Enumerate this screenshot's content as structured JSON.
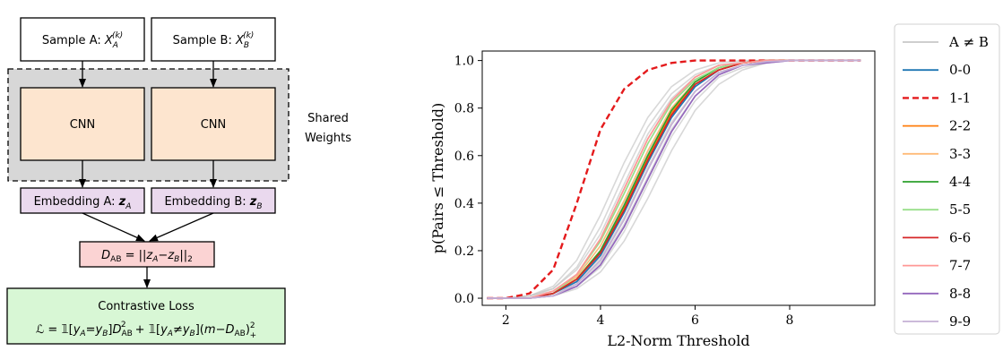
{
  "diagram": {
    "sample_a": {
      "prefix": "Sample A: ",
      "var": "X",
      "sub": "A",
      "sup": "(k)"
    },
    "sample_b": {
      "prefix": "Sample B: ",
      "var": "X",
      "sub": "B",
      "sup": "(k)"
    },
    "cnn_a": "CNN",
    "cnn_b": "CNN",
    "shared_line1": "Shared",
    "shared_line2": "Weights",
    "embedding_a": {
      "prefix": "Embedding A: ",
      "var": "z",
      "sub": "A"
    },
    "embedding_b": {
      "prefix": "Embedding B: ",
      "var": "z",
      "sub": "B"
    },
    "distance": {
      "lhs": "D",
      "lhs_sub": "AB",
      "eq": " = ||",
      "z1": "z",
      "s1": "A",
      "minus": "−",
      "z2": "z",
      "s2": "B",
      "tail": "||",
      "tail_sub": "2"
    },
    "loss_title": "Contrastive Loss",
    "loss_formula": {
      "L": "ℒ",
      "eq": " = ",
      "ind1": "𝟙[",
      "ya": "y",
      "ya_sub": "A",
      "eqsign": "=",
      "yb": "y",
      "yb_sub": "B",
      "close1": "]",
      "d": "D",
      "d_sub": "AB",
      "d_sup": "2",
      "plus": " + ",
      "ind2": "𝟙[",
      "neq": "≠",
      "close2": "](",
      "m": "m",
      "minus": "−",
      "d2": "D",
      "d2_sub": "AB",
      "close3": ")",
      "sq_sup": "2",
      "sq_sub": "+"
    },
    "colors": {
      "cnn_fill": "#fde5cf",
      "embedding_fill": "#ead9ee",
      "distance_fill": "#fbd3d3",
      "loss_fill": "#d8f7d5",
      "shared_fill": "#d7d7d7"
    }
  },
  "chart_data": {
    "type": "line",
    "xlabel": "L2-Norm Threshold",
    "ylabel": "p(Pairs ≤ Threshold)",
    "xlim": [
      1.5,
      9.8
    ],
    "ylim": [
      -0.03,
      1.04
    ],
    "xticks": [
      "2",
      "4",
      "6",
      "8"
    ],
    "xtick_values": [
      2,
      4,
      6,
      8
    ],
    "yticks": [
      "0.0",
      "0.2",
      "0.4",
      "0.6",
      "0.8",
      "1.0"
    ],
    "ytick_values": [
      0.0,
      0.2,
      0.4,
      0.6,
      0.8,
      1.0
    ],
    "grid": false,
    "legend_position": "outside-right",
    "x": [
      1.6,
      2.0,
      2.5,
      3.0,
      3.5,
      4.0,
      4.5,
      5.0,
      5.5,
      6.0,
      6.5,
      7.0,
      7.5,
      8.0,
      9.5
    ],
    "background_series": [
      {
        "values": [
          0.0,
          0.0,
          0.01,
          0.05,
          0.16,
          0.35,
          0.57,
          0.76,
          0.89,
          0.96,
          0.99,
          1.0,
          1.0,
          1.0,
          1.0
        ]
      },
      {
        "values": [
          0.0,
          0.0,
          0.01,
          0.04,
          0.13,
          0.3,
          0.52,
          0.72,
          0.86,
          0.94,
          0.98,
          0.995,
          1.0,
          1.0,
          1.0
        ]
      },
      {
        "values": [
          0.0,
          0.0,
          0.01,
          0.03,
          0.1,
          0.25,
          0.46,
          0.67,
          0.83,
          0.92,
          0.97,
          0.99,
          1.0,
          1.0,
          1.0
        ]
      },
      {
        "values": [
          0.0,
          0.0,
          0.0,
          0.02,
          0.08,
          0.2,
          0.4,
          0.61,
          0.79,
          0.9,
          0.96,
          0.99,
          1.0,
          1.0,
          1.0
        ]
      },
      {
        "values": [
          0.0,
          0.0,
          0.0,
          0.02,
          0.07,
          0.17,
          0.34,
          0.55,
          0.74,
          0.87,
          0.95,
          0.98,
          0.995,
          1.0,
          1.0
        ]
      },
      {
        "values": [
          0.0,
          0.0,
          0.0,
          0.01,
          0.05,
          0.13,
          0.28,
          0.48,
          0.68,
          0.83,
          0.93,
          0.97,
          0.99,
          1.0,
          1.0
        ]
      },
      {
        "values": [
          0.0,
          0.0,
          0.0,
          0.01,
          0.04,
          0.11,
          0.24,
          0.42,
          0.62,
          0.79,
          0.9,
          0.96,
          0.99,
          1.0,
          1.0
        ]
      },
      {
        "values": [
          0.0,
          0.0,
          0.01,
          0.04,
          0.12,
          0.27,
          0.48,
          0.69,
          0.84,
          0.93,
          0.98,
          0.99,
          1.0,
          1.0,
          1.0
        ]
      },
      {
        "values": [
          0.0,
          0.0,
          0.0,
          0.02,
          0.06,
          0.15,
          0.31,
          0.51,
          0.71,
          0.85,
          0.94,
          0.98,
          0.995,
          1.0,
          1.0
        ]
      }
    ],
    "background_color": "#c8c8c8",
    "series": [
      {
        "name": "0-0",
        "color": "#1f77b4",
        "dashed": false,
        "values": [
          0.0,
          0.0,
          0.0,
          0.02,
          0.07,
          0.18,
          0.36,
          0.57,
          0.76,
          0.89,
          0.96,
          0.99,
          1.0,
          1.0,
          1.0
        ]
      },
      {
        "name": "1-1",
        "color": "#e41a1c",
        "dashed": true,
        "values": [
          0.0,
          0.0,
          0.02,
          0.12,
          0.4,
          0.71,
          0.88,
          0.96,
          0.99,
          1.0,
          1.0,
          1.0,
          1.0,
          1.0,
          1.0
        ]
      },
      {
        "name": "2-2",
        "color": "#ff7f0e",
        "dashed": false,
        "values": [
          0.0,
          0.0,
          0.0,
          0.02,
          0.08,
          0.2,
          0.38,
          0.59,
          0.78,
          0.9,
          0.96,
          0.99,
          1.0,
          1.0,
          1.0
        ]
      },
      {
        "name": "3-3",
        "color": "#ffbb78",
        "dashed": false,
        "values": [
          0.0,
          0.0,
          0.0,
          0.02,
          0.09,
          0.22,
          0.41,
          0.62,
          0.8,
          0.91,
          0.97,
          0.99,
          1.0,
          1.0,
          1.0
        ]
      },
      {
        "name": "4-4",
        "color": "#2ca02c",
        "dashed": false,
        "values": [
          0.0,
          0.0,
          0.0,
          0.02,
          0.08,
          0.2,
          0.39,
          0.6,
          0.79,
          0.91,
          0.97,
          0.99,
          1.0,
          1.0,
          1.0
        ]
      },
      {
        "name": "5-5",
        "color": "#98df8a",
        "dashed": false,
        "values": [
          0.0,
          0.0,
          0.0,
          0.02,
          0.1,
          0.24,
          0.44,
          0.65,
          0.82,
          0.92,
          0.97,
          0.99,
          1.0,
          1.0,
          1.0
        ]
      },
      {
        "name": "6-6",
        "color": "#d62728",
        "dashed": false,
        "values": [
          0.0,
          0.0,
          0.0,
          0.02,
          0.08,
          0.19,
          0.37,
          0.58,
          0.77,
          0.9,
          0.96,
          0.99,
          1.0,
          1.0,
          1.0
        ]
      },
      {
        "name": "7-7",
        "color": "#ff9896",
        "dashed": false,
        "values": [
          0.0,
          0.0,
          0.0,
          0.03,
          0.1,
          0.25,
          0.46,
          0.67,
          0.83,
          0.93,
          0.98,
          0.99,
          1.0,
          1.0,
          1.0
        ]
      },
      {
        "name": "8-8",
        "color": "#9467bd",
        "dashed": false,
        "values": [
          0.0,
          0.0,
          0.0,
          0.01,
          0.05,
          0.14,
          0.3,
          0.5,
          0.7,
          0.85,
          0.94,
          0.98,
          0.99,
          1.0,
          1.0
        ]
      },
      {
        "name": "9-9",
        "color": "#c5b0d5",
        "dashed": false,
        "values": [
          0.0,
          0.0,
          0.0,
          0.01,
          0.06,
          0.16,
          0.33,
          0.54,
          0.73,
          0.87,
          0.95,
          0.98,
          0.995,
          1.0,
          1.0
        ]
      }
    ],
    "legend": [
      {
        "label": "A ≠ B",
        "color": "#c8c8c8",
        "dashed": false
      },
      {
        "label": "0-0",
        "color": "#1f77b4",
        "dashed": false
      },
      {
        "label": "1-1",
        "color": "#e41a1c",
        "dashed": true
      },
      {
        "label": "2-2",
        "color": "#ff7f0e",
        "dashed": false
      },
      {
        "label": "3-3",
        "color": "#ffbb78",
        "dashed": false
      },
      {
        "label": "4-4",
        "color": "#2ca02c",
        "dashed": false
      },
      {
        "label": "5-5",
        "color": "#98df8a",
        "dashed": false
      },
      {
        "label": "6-6",
        "color": "#d62728",
        "dashed": false
      },
      {
        "label": "7-7",
        "color": "#ff9896",
        "dashed": false
      },
      {
        "label": "8-8",
        "color": "#9467bd",
        "dashed": false
      },
      {
        "label": "9-9",
        "color": "#c5b0d5",
        "dashed": false
      }
    ]
  }
}
